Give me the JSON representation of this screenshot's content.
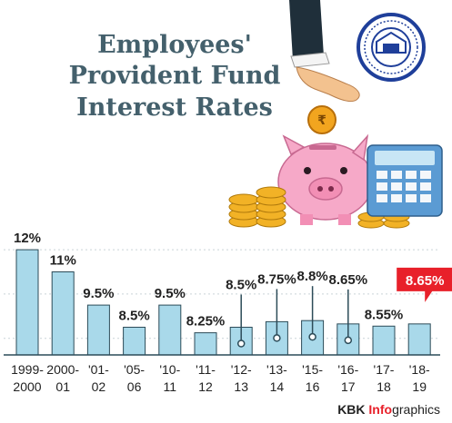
{
  "chart_data": {
    "type": "bar",
    "title": "Employees' Provident Fund Interest Rates",
    "title_lines": [
      "Employees'",
      "Provident Fund",
      "Interest Rates"
    ],
    "categories": [
      [
        "1999-",
        "2000"
      ],
      [
        "2000-",
        "01"
      ],
      [
        "'01-",
        "02"
      ],
      [
        "'05-",
        "06"
      ],
      [
        "'10-",
        "11"
      ],
      [
        "'11-",
        "12"
      ],
      [
        "'12-",
        "13"
      ],
      [
        "'13-",
        "14"
      ],
      [
        "'15-",
        "16"
      ],
      [
        "'16-",
        "17"
      ],
      [
        "'17-",
        "18"
      ],
      [
        "'18-",
        "19"
      ]
    ],
    "values": [
      12,
      11,
      9.5,
      8.5,
      9.5,
      8.25,
      8.5,
      8.75,
      8.8,
      8.65,
      8.55,
      8.65
    ],
    "labels": [
      "12%",
      "11%",
      "9.5%",
      "8.5%",
      "9.5%",
      "8.25%",
      "8.5%",
      "8.75%",
      "8.8%",
      "8.65%",
      "8.55%",
      "8.65%"
    ],
    "highlight_index": 11,
    "bar_color": "#a9d9ea",
    "bar_stroke": "#2c4b58",
    "highlight_color": "#e8202a",
    "grid": true,
    "xlabel": "",
    "ylabel": ""
  },
  "credit": {
    "brand": "KBK ",
    "accent": "Info",
    "rest": "graphics",
    "accent_color": "#e8202a"
  }
}
